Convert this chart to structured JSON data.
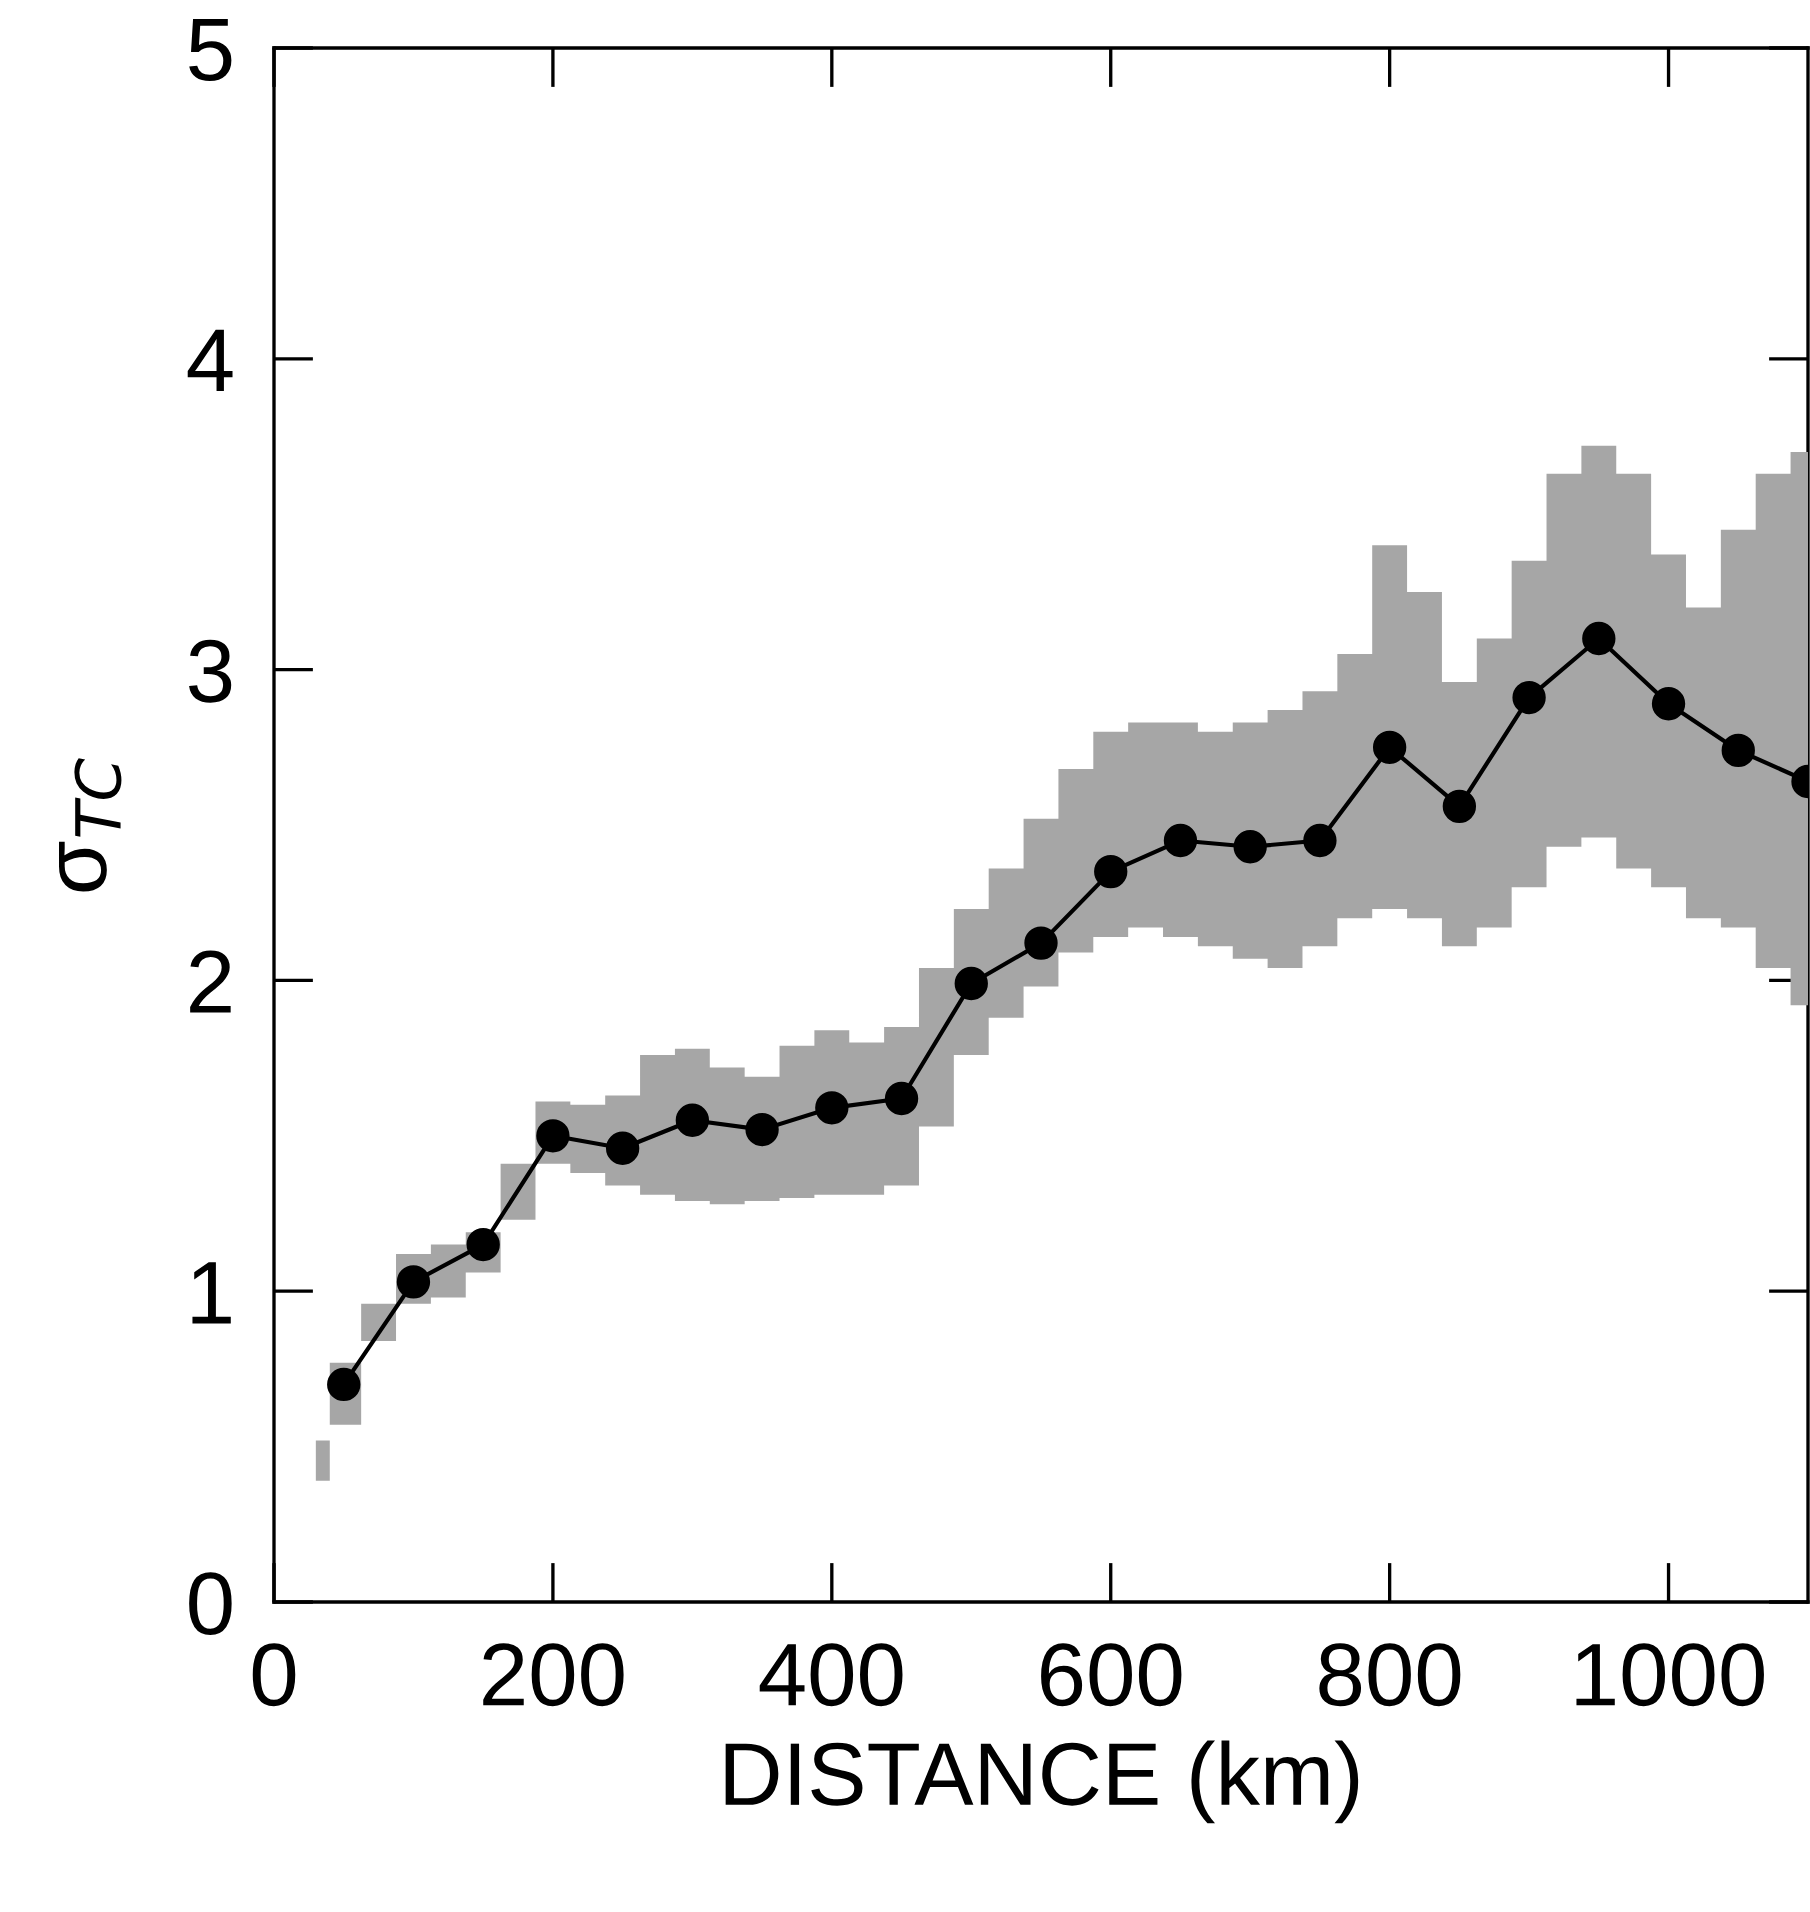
{
  "chart_data": {
    "type": "line",
    "xlabel": "DISTANCE (km)",
    "ylabel": "σ$_{TC}$",
    "xlim": [
      0,
      1100
    ],
    "xticks": [
      0,
      200,
      400,
      600,
      800,
      1000
    ],
    "ylim": [
      0,
      5
    ],
    "yticks": [
      0,
      1,
      2,
      3,
      4,
      5
    ],
    "grid": false,
    "marker": "circle",
    "line_style": "solid",
    "series": [
      {
        "color": "#000000",
        "x": [
          50,
          100,
          150,
          200,
          250,
          300,
          350,
          400,
          450,
          500,
          550,
          600,
          650,
          700,
          750,
          800,
          850,
          900,
          950,
          1000,
          1050,
          1100
        ],
        "values": [
          0.7,
          1.03,
          1.15,
          1.5,
          1.46,
          1.55,
          1.52,
          1.59,
          1.62,
          1.99,
          2.12,
          2.35,
          2.45,
          2.43,
          2.45,
          2.75,
          2.56,
          2.91,
          3.1,
          2.89,
          2.74,
          2.64
        ]
      },
      {
        "color": "#a6a6a6",
        "x": [
          30,
          50,
          75,
          100,
          125,
          150,
          175,
          200,
          225,
          250,
          275,
          300,
          325,
          350,
          375,
          400,
          425,
          450,
          475,
          500,
          525,
          550,
          575,
          600,
          625,
          650,
          675,
          700,
          725,
          750,
          775,
          800,
          825,
          850,
          875,
          900,
          925,
          950,
          975,
          1000,
          1025,
          1050,
          1075,
          1100
        ],
        "values": [
          null,
          null,
          null,
          null,
          null,
          null,
          null,
          null,
          null,
          null,
          null,
          null,
          null,
          null,
          null,
          null,
          null,
          null,
          null,
          null,
          null,
          null,
          null,
          null,
          null,
          null,
          null,
          null,
          null,
          null,
          null,
          null,
          null,
          null,
          null,
          null,
          null,
          null,
          null,
          null,
          null,
          null,
          null,
          null
        ],
        "lower": [
          0.39,
          0.57,
          0.84,
          0.96,
          0.98,
          1.06,
          1.23,
          1.41,
          1.38,
          1.34,
          1.31,
          1.29,
          1.28,
          1.29,
          1.3,
          1.31,
          1.31,
          1.34,
          1.53,
          1.76,
          1.88,
          1.98,
          2.09,
          2.14,
          2.17,
          2.14,
          2.11,
          2.07,
          2.04,
          2.11,
          2.2,
          2.23,
          2.2,
          2.11,
          2.17,
          2.3,
          2.43,
          2.46,
          2.36,
          2.3,
          2.2,
          2.17,
          2.04,
          1.92
        ],
        "upper": [
          0.52,
          0.77,
          0.96,
          1.12,
          1.15,
          1.19,
          1.41,
          1.61,
          1.6,
          1.63,
          1.76,
          1.78,
          1.72,
          1.69,
          1.79,
          1.84,
          1.8,
          1.85,
          2.04,
          2.23,
          2.36,
          2.52,
          2.68,
          2.8,
          2.83,
          2.83,
          2.8,
          2.83,
          2.87,
          2.93,
          3.05,
          3.4,
          3.25,
          2.96,
          3.1,
          3.35,
          3.63,
          3.72,
          3.63,
          3.37,
          3.2,
          3.45,
          3.63,
          3.7
        ]
      }
    ]
  }
}
